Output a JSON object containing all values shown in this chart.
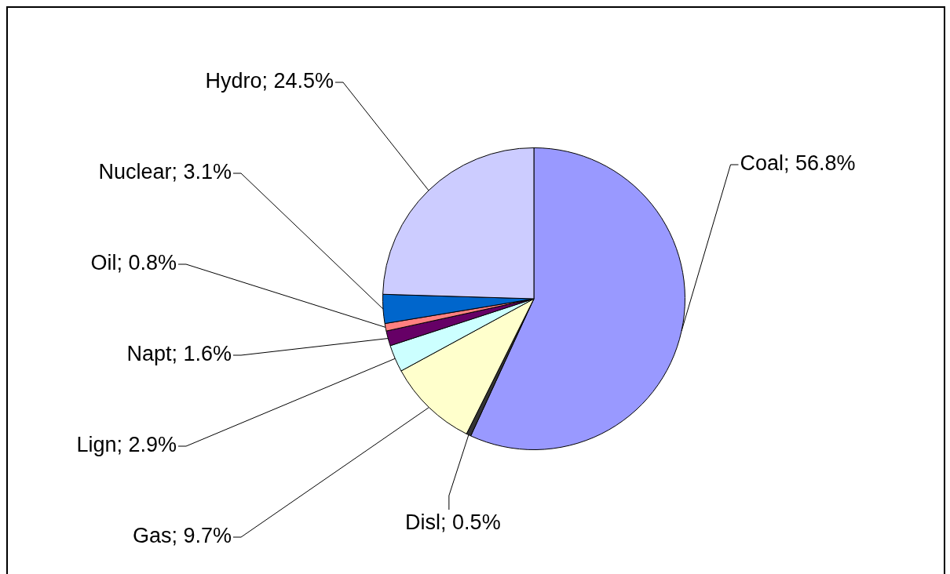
{
  "chart_data": {
    "type": "pie",
    "categories": [
      "Coal",
      "Disl",
      "Gas",
      "Lign",
      "Napt",
      "Oil",
      "Nuclear",
      "Hydro"
    ],
    "values": [
      56.8,
      0.5,
      9.7,
      2.9,
      1.6,
      0.8,
      3.1,
      24.5
    ],
    "value_labels": [
      "56.8%",
      "0.5%",
      "9.7%",
      "2.9%",
      "1.6%",
      "0.8%",
      "3.1%",
      "24.5%"
    ],
    "colors": [
      "#9999ff",
      "#333333",
      "#ffffcc",
      "#ccffff",
      "#660066",
      "#ff8080",
      "#0066cc",
      "#ccccff"
    ],
    "legend": false
  }
}
